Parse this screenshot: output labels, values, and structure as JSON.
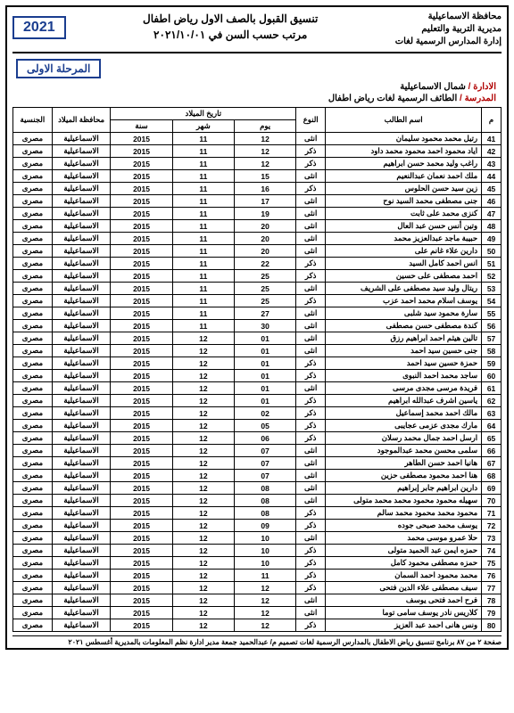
{
  "header": {
    "gov": "محافظة الاسماعيلية",
    "dir": "مديرية التربية والتعليم",
    "dept": "إدارة المدارس الرسمية لغات",
    "title1": "تنسيق القبول بالصف الاول رياض اطفال",
    "title2": "مرتب حسب السن في ٢٠٢١/١٠/٠١",
    "year": "2021",
    "stage": "المرحلة الاولى"
  },
  "meta": {
    "admin_label": "الادارة /",
    "admin_val": "شمال الاسماعيلية",
    "school_label": "المدرسة /",
    "school_val": "الطائف الرسمية لغات رياض اطفال"
  },
  "columns": {
    "m": "م",
    "name": "اسم الطالب",
    "type": "النوع",
    "birth": "تاريخ الميلاد",
    "day": "يوم",
    "month": "شهر",
    "year": "سنة",
    "gov": "محافظة الميلاد",
    "nat": "الجنسية"
  },
  "defaults": {
    "gov": "الاسماعيلية",
    "nat": "مصرى",
    "year": "2015"
  },
  "rows": [
    {
      "m": 41,
      "name": "رتيل محمد محمود سليمان",
      "type": "انثى",
      "d": "12",
      "mo": "11"
    },
    {
      "m": 42,
      "name": "اياد محمود احمد محمود محمد داود",
      "type": "ذكر",
      "d": "12",
      "mo": "11"
    },
    {
      "m": 43,
      "name": "راغب وليد محمد حسن ابراهيم",
      "type": "ذكر",
      "d": "12",
      "mo": "11"
    },
    {
      "m": 44,
      "name": "ملك احمد نعمان عبدالنعيم",
      "type": "انثى",
      "d": "15",
      "mo": "11"
    },
    {
      "m": 45,
      "name": "زين سيد حسن الحلوس",
      "type": "ذكر",
      "d": "16",
      "mo": "11"
    },
    {
      "m": 46,
      "name": "جنى مصطفى محمد السيد نوح",
      "type": "انثى",
      "d": "17",
      "mo": "11"
    },
    {
      "m": 47,
      "name": "كنزى محمد على ثابت",
      "type": "انثى",
      "d": "19",
      "mo": "11"
    },
    {
      "m": 48,
      "name": "وتين أنس حسن عبد العال",
      "type": "انثى",
      "d": "20",
      "mo": "11"
    },
    {
      "m": 49,
      "name": "حبيبة ماجد عبدالعزيز محمد",
      "type": "انثى",
      "d": "20",
      "mo": "11"
    },
    {
      "m": 50,
      "name": "دارين علاء غانم على",
      "type": "انثى",
      "d": "20",
      "mo": "11"
    },
    {
      "m": 51,
      "name": "انس احمد كامل السيد",
      "type": "ذكر",
      "d": "22",
      "mo": "11"
    },
    {
      "m": 52,
      "name": "احمد مصطفى على حسين",
      "type": "ذكر",
      "d": "25",
      "mo": "11"
    },
    {
      "m": 53,
      "name": "ريتال وليد سيد مصطفى على الشريف",
      "type": "انثى",
      "d": "25",
      "mo": "11"
    },
    {
      "m": 54,
      "name": "يوسف اسلام محمد احمد عزب",
      "type": "ذكر",
      "d": "25",
      "mo": "11"
    },
    {
      "m": 55,
      "name": "سارة محمود سيد شلبى",
      "type": "انثى",
      "d": "27",
      "mo": "11"
    },
    {
      "m": 56,
      "name": "كندة مصطفى حسن مصطفى",
      "type": "انثى",
      "d": "30",
      "mo": "11"
    },
    {
      "m": 57,
      "name": "تالين هيثم احمد ابراهيم رزق",
      "type": "انثى",
      "d": "01",
      "mo": "12"
    },
    {
      "m": 58,
      "name": "جنى حسين سيد احمد",
      "type": "انثى",
      "d": "01",
      "mo": "12"
    },
    {
      "m": 59,
      "name": "حمزة حسين سيد احمد",
      "type": "ذكر",
      "d": "01",
      "mo": "12"
    },
    {
      "m": 60,
      "name": "ساجد محمد احمد النبوى",
      "type": "ذكر",
      "d": "01",
      "mo": "12"
    },
    {
      "m": 61,
      "name": "فريدة مرسى مجدى مرسى",
      "type": "انثى",
      "d": "01",
      "mo": "12"
    },
    {
      "m": 62,
      "name": "ياسين اشرف عبدالله ابراهيم",
      "type": "ذكر",
      "d": "01",
      "mo": "12"
    },
    {
      "m": 63,
      "name": "مالك احمد محمد إسماعيل",
      "type": "ذكر",
      "d": "02",
      "mo": "12"
    },
    {
      "m": 64,
      "name": "مارك مجدى عزمى عجايبى",
      "type": "ذكر",
      "d": "05",
      "mo": "12"
    },
    {
      "m": 65,
      "name": "ارسل احمد جمال محمد رسلان",
      "type": "ذكر",
      "d": "06",
      "mo": "12"
    },
    {
      "m": 66,
      "name": "سلمى محسن محمد عبدالموجود",
      "type": "انثى",
      "d": "07",
      "mo": "12"
    },
    {
      "m": 67,
      "name": "هانيا احمد حسن الطاهر",
      "type": "انثى",
      "d": "07",
      "mo": "12"
    },
    {
      "m": 68,
      "name": "هنا احمد محمود مصطفى حزين",
      "type": "انثى",
      "d": "07",
      "mo": "12"
    },
    {
      "m": 69,
      "name": "دارين ابراهيم جابر إبراهيم",
      "type": "انثى",
      "d": "08",
      "mo": "12"
    },
    {
      "m": 70,
      "name": "سهيله محمود محمود محمد محمد متولى",
      "type": "انثى",
      "d": "08",
      "mo": "12"
    },
    {
      "m": 71,
      "name": "محمود محمد محمود محمد سالم",
      "type": "ذكر",
      "d": "08",
      "mo": "12"
    },
    {
      "m": 72,
      "name": "يوسف محمد صبحى جوده",
      "type": "ذكر",
      "d": "09",
      "mo": "12"
    },
    {
      "m": 73,
      "name": "حلا عمرو موسى محمد",
      "type": "انثى",
      "d": "10",
      "mo": "12"
    },
    {
      "m": 74,
      "name": "حمزه ايمن عبد الحميد متولى",
      "type": "ذكر",
      "d": "10",
      "mo": "12"
    },
    {
      "m": 75,
      "name": "حمزه مصطفى محمود كامل",
      "type": "ذكر",
      "d": "10",
      "mo": "12"
    },
    {
      "m": 76,
      "name": "محمد محمود احمد السمان",
      "type": "ذكر",
      "d": "11",
      "mo": "12"
    },
    {
      "m": 77,
      "name": "سيف مصطفى علاء الدين فتحى",
      "type": "ذكر",
      "d": "12",
      "mo": "12"
    },
    {
      "m": 78,
      "name": "فرح احمد فتحى يوسف",
      "type": "انثى",
      "d": "12",
      "mo": "12"
    },
    {
      "m": 79,
      "name": "كلاريس نادر يوسف سامى توما",
      "type": "انثى",
      "d": "12",
      "mo": "12"
    },
    {
      "m": 80,
      "name": "ونس هانى احمد عبد العزيز",
      "type": "ذكر",
      "d": "12",
      "mo": "12"
    }
  ],
  "footer": "صفحة ٢ من ٨٧   برنامج تنسيق رياض الاطفال بالمدارس الرسمية لغات   تصميم م/ عبدالحميد جمعة مدير ادارة نظم المعلومات بالمديرية  أغسطس ٢٠٢١"
}
